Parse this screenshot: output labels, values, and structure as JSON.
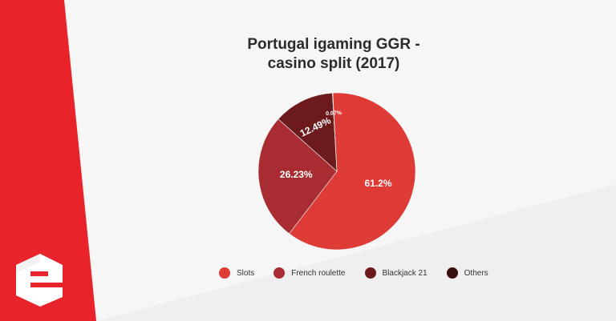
{
  "chart_data": {
    "type": "pie",
    "title_lines": [
      "Portugal igaming GGR -",
      "casino split (2017)"
    ],
    "categories": [
      "Slots",
      "French roulette",
      "Blackjack 21",
      "Others"
    ],
    "values": [
      61.2,
      26.23,
      12.49,
      0.07
    ],
    "data_labels": [
      "61.2%",
      "26.23%",
      "12.49%",
      "0.07%"
    ],
    "colors": [
      "#de3a36",
      "#a92c32",
      "#6c1a1c",
      "#3a0f10"
    ],
    "legend_position": "bottom"
  },
  "colors": {
    "background": "#efefef",
    "accent_red": "#e8232a",
    "label_text": "#ffffff"
  },
  "icons": {
    "logo": "brand-e-logo"
  }
}
